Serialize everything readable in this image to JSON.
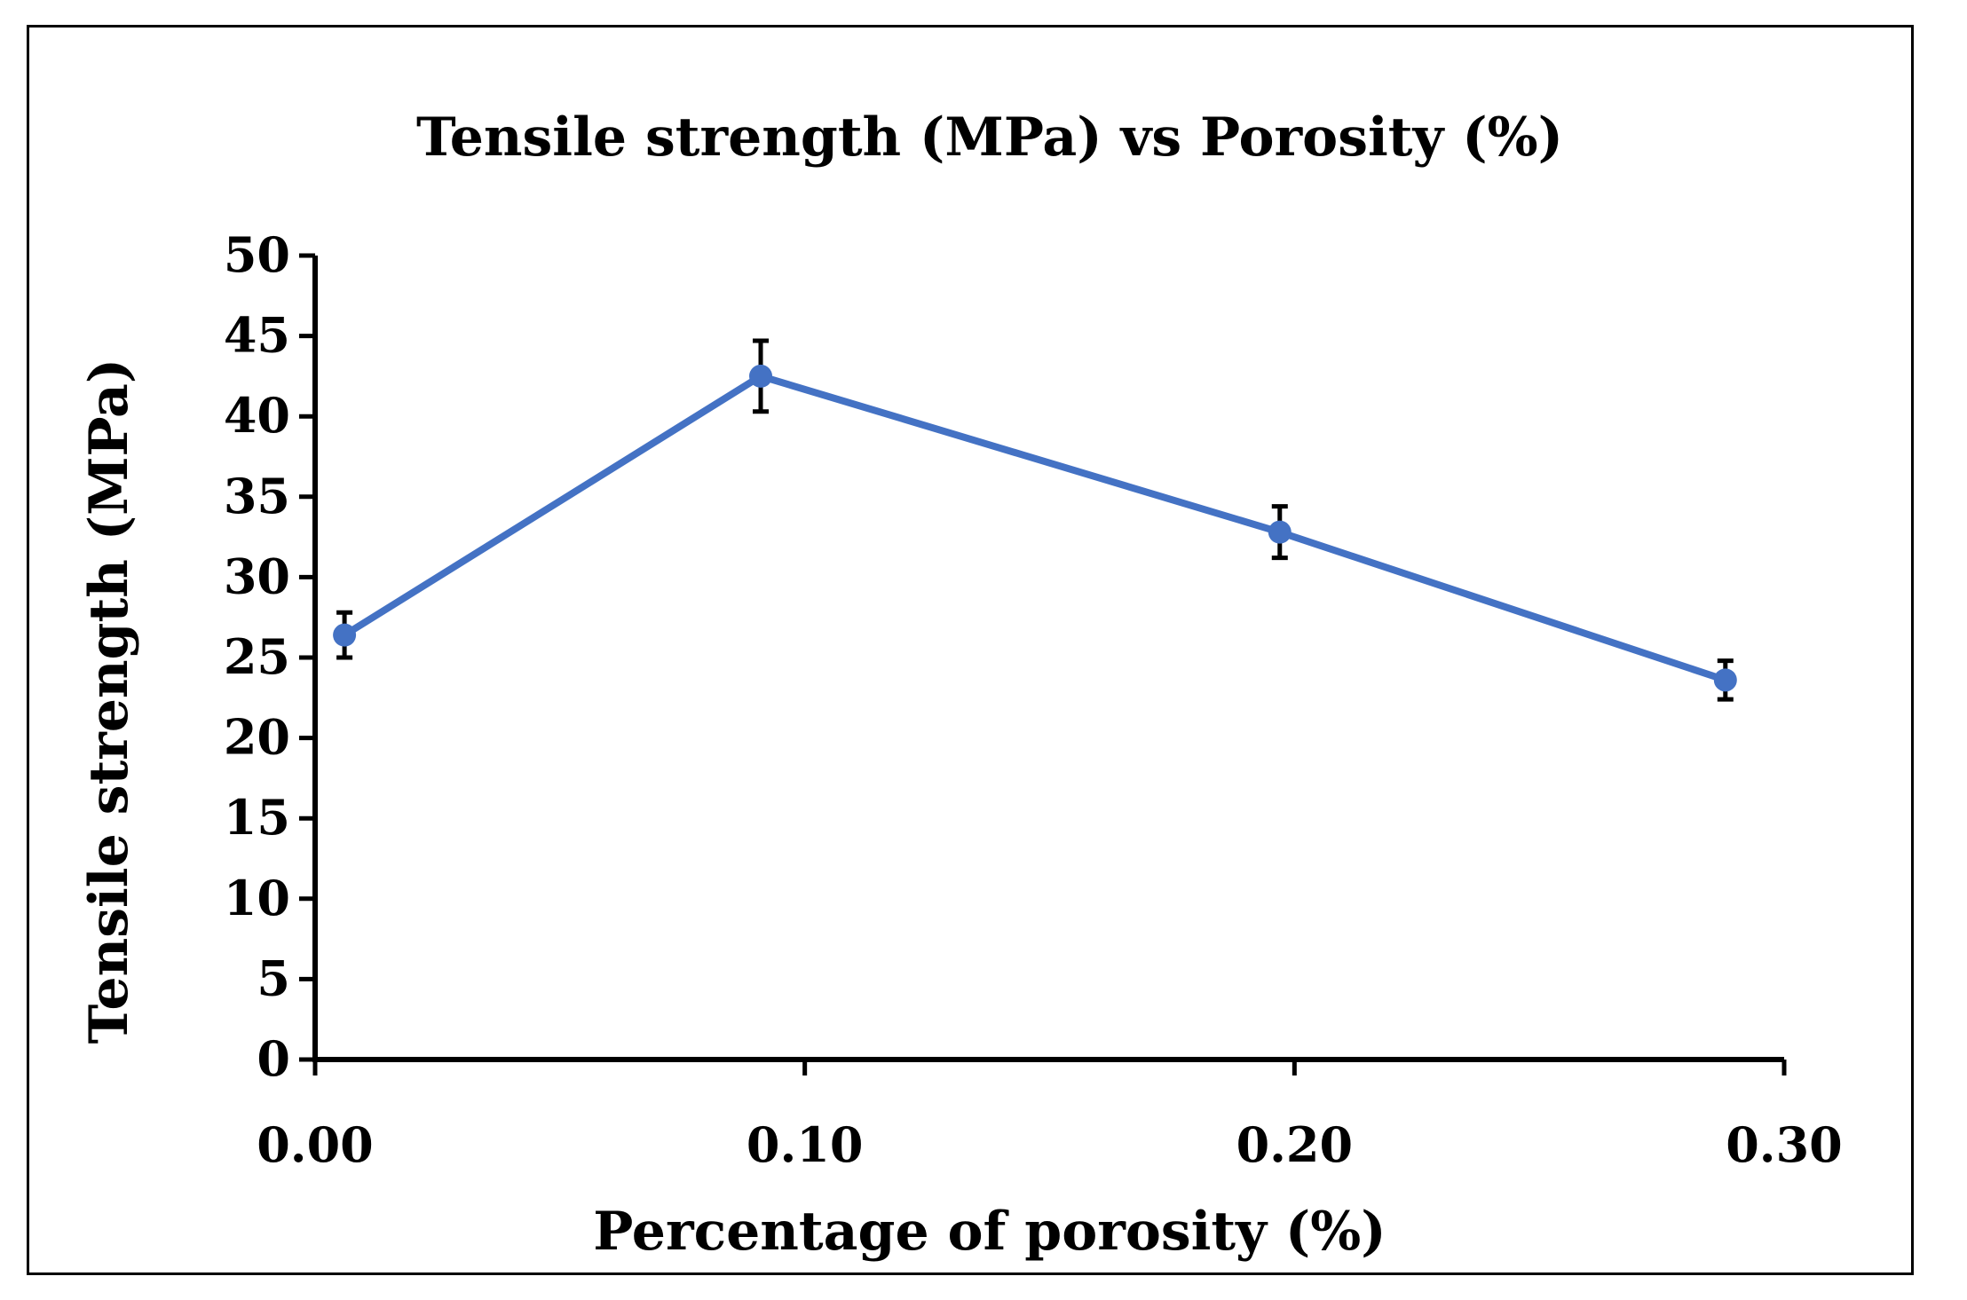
{
  "chart_data": {
    "type": "line",
    "title": "Tensile strength (MPa) vs Porosity (%)",
    "xlabel": "Percentage of porosity (%)",
    "ylabel": "Tensile strength (MPa)",
    "xlim": [
      0.0,
      0.3
    ],
    "ylim": [
      0,
      50
    ],
    "x_ticks": [
      0.0,
      0.1,
      0.2,
      0.3
    ],
    "x_tick_labels": [
      "0.00",
      "0.10",
      "0.20",
      "0.30"
    ],
    "y_ticks": [
      0,
      5,
      10,
      15,
      20,
      25,
      30,
      35,
      40,
      45,
      50
    ],
    "y_tick_labels": [
      "0",
      "5",
      "10",
      "15",
      "20",
      "25",
      "30",
      "35",
      "40",
      "45",
      "50"
    ],
    "grid": false,
    "series": [
      {
        "name": "Tensile strength",
        "color": "#4472C4",
        "x": [
          0.006,
          0.091,
          0.197,
          0.288
        ],
        "values": [
          26.4,
          42.5,
          32.8,
          23.6
        ],
        "error": [
          1.4,
          2.2,
          1.6,
          1.2
        ]
      }
    ],
    "error_bar_color": "#000000"
  }
}
